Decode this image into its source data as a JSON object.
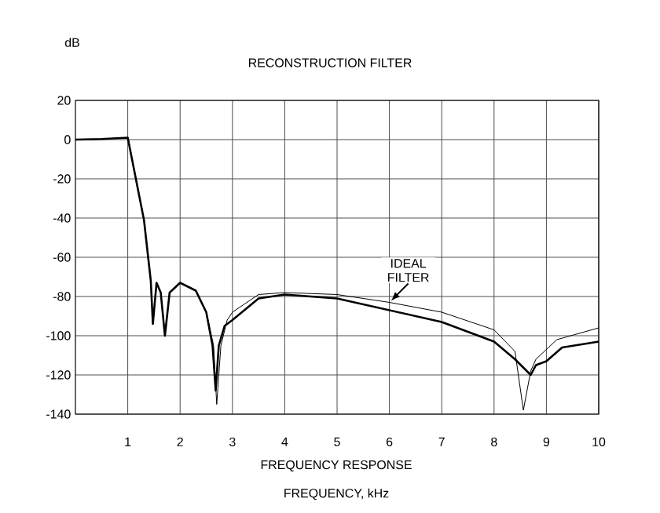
{
  "chart_data": {
    "type": "line",
    "title": "RECONSTRUCTION FILTER",
    "ylabel": "dB",
    "xlabel": "FREQUENCY, kHz",
    "annotations": [
      "FREQUENCY RESPONSE"
    ],
    "xlim": [
      0,
      10
    ],
    "ylim": [
      -140,
      20
    ],
    "xticks": [
      1,
      2,
      3,
      4,
      5,
      6,
      7,
      8,
      9,
      10
    ],
    "yticks": [
      -140,
      -120,
      -100,
      -80,
      -60,
      -40,
      -20,
      0,
      20
    ],
    "grid": true,
    "series": [
      {
        "color": "#000000",
        "x": [
          0,
          0.5,
          1,
          1.31,
          1.44,
          1.48,
          1.55,
          1.63,
          1.71,
          1.8,
          2.0,
          2.3,
          2.5,
          2.62,
          2.68,
          2.74,
          2.85,
          3.0,
          3.5,
          4,
          5,
          6,
          7,
          8,
          8.4,
          8.7,
          8.8,
          9.0,
          9.3,
          10
        ],
        "values": [
          0,
          0.3,
          1,
          -41,
          -72,
          -94,
          -73,
          -78,
          -100,
          -78,
          -73,
          -77,
          -88,
          -105,
          -128,
          -105,
          -95,
          -92,
          -81,
          -79,
          -81,
          -87,
          -93,
          -103,
          -112,
          -120,
          -115,
          -113,
          -106,
          -103
        ]
      },
      {
        "name": "IDEAL FILTER",
        "color": "#000000",
        "x": [
          0,
          0.5,
          1,
          1.31,
          1.44,
          1.48,
          1.55,
          1.63,
          1.71,
          1.8,
          2.0,
          2.3,
          2.5,
          2.64,
          2.7,
          2.78,
          2.9,
          3.0,
          3.5,
          4,
          5,
          6,
          7,
          8,
          8.4,
          8.56,
          8.7,
          8.8,
          9.2,
          10
        ],
        "values": [
          0,
          0.3,
          1,
          -41,
          -72,
          -94,
          -73,
          -78,
          -100,
          -78,
          -73,
          -77,
          -88,
          -105,
          -135,
          -105,
          -92,
          -88,
          -79,
          -78,
          -79,
          -83,
          -88,
          -97,
          -108,
          -138,
          -118,
          -112,
          -102,
          -96
        ]
      }
    ]
  }
}
